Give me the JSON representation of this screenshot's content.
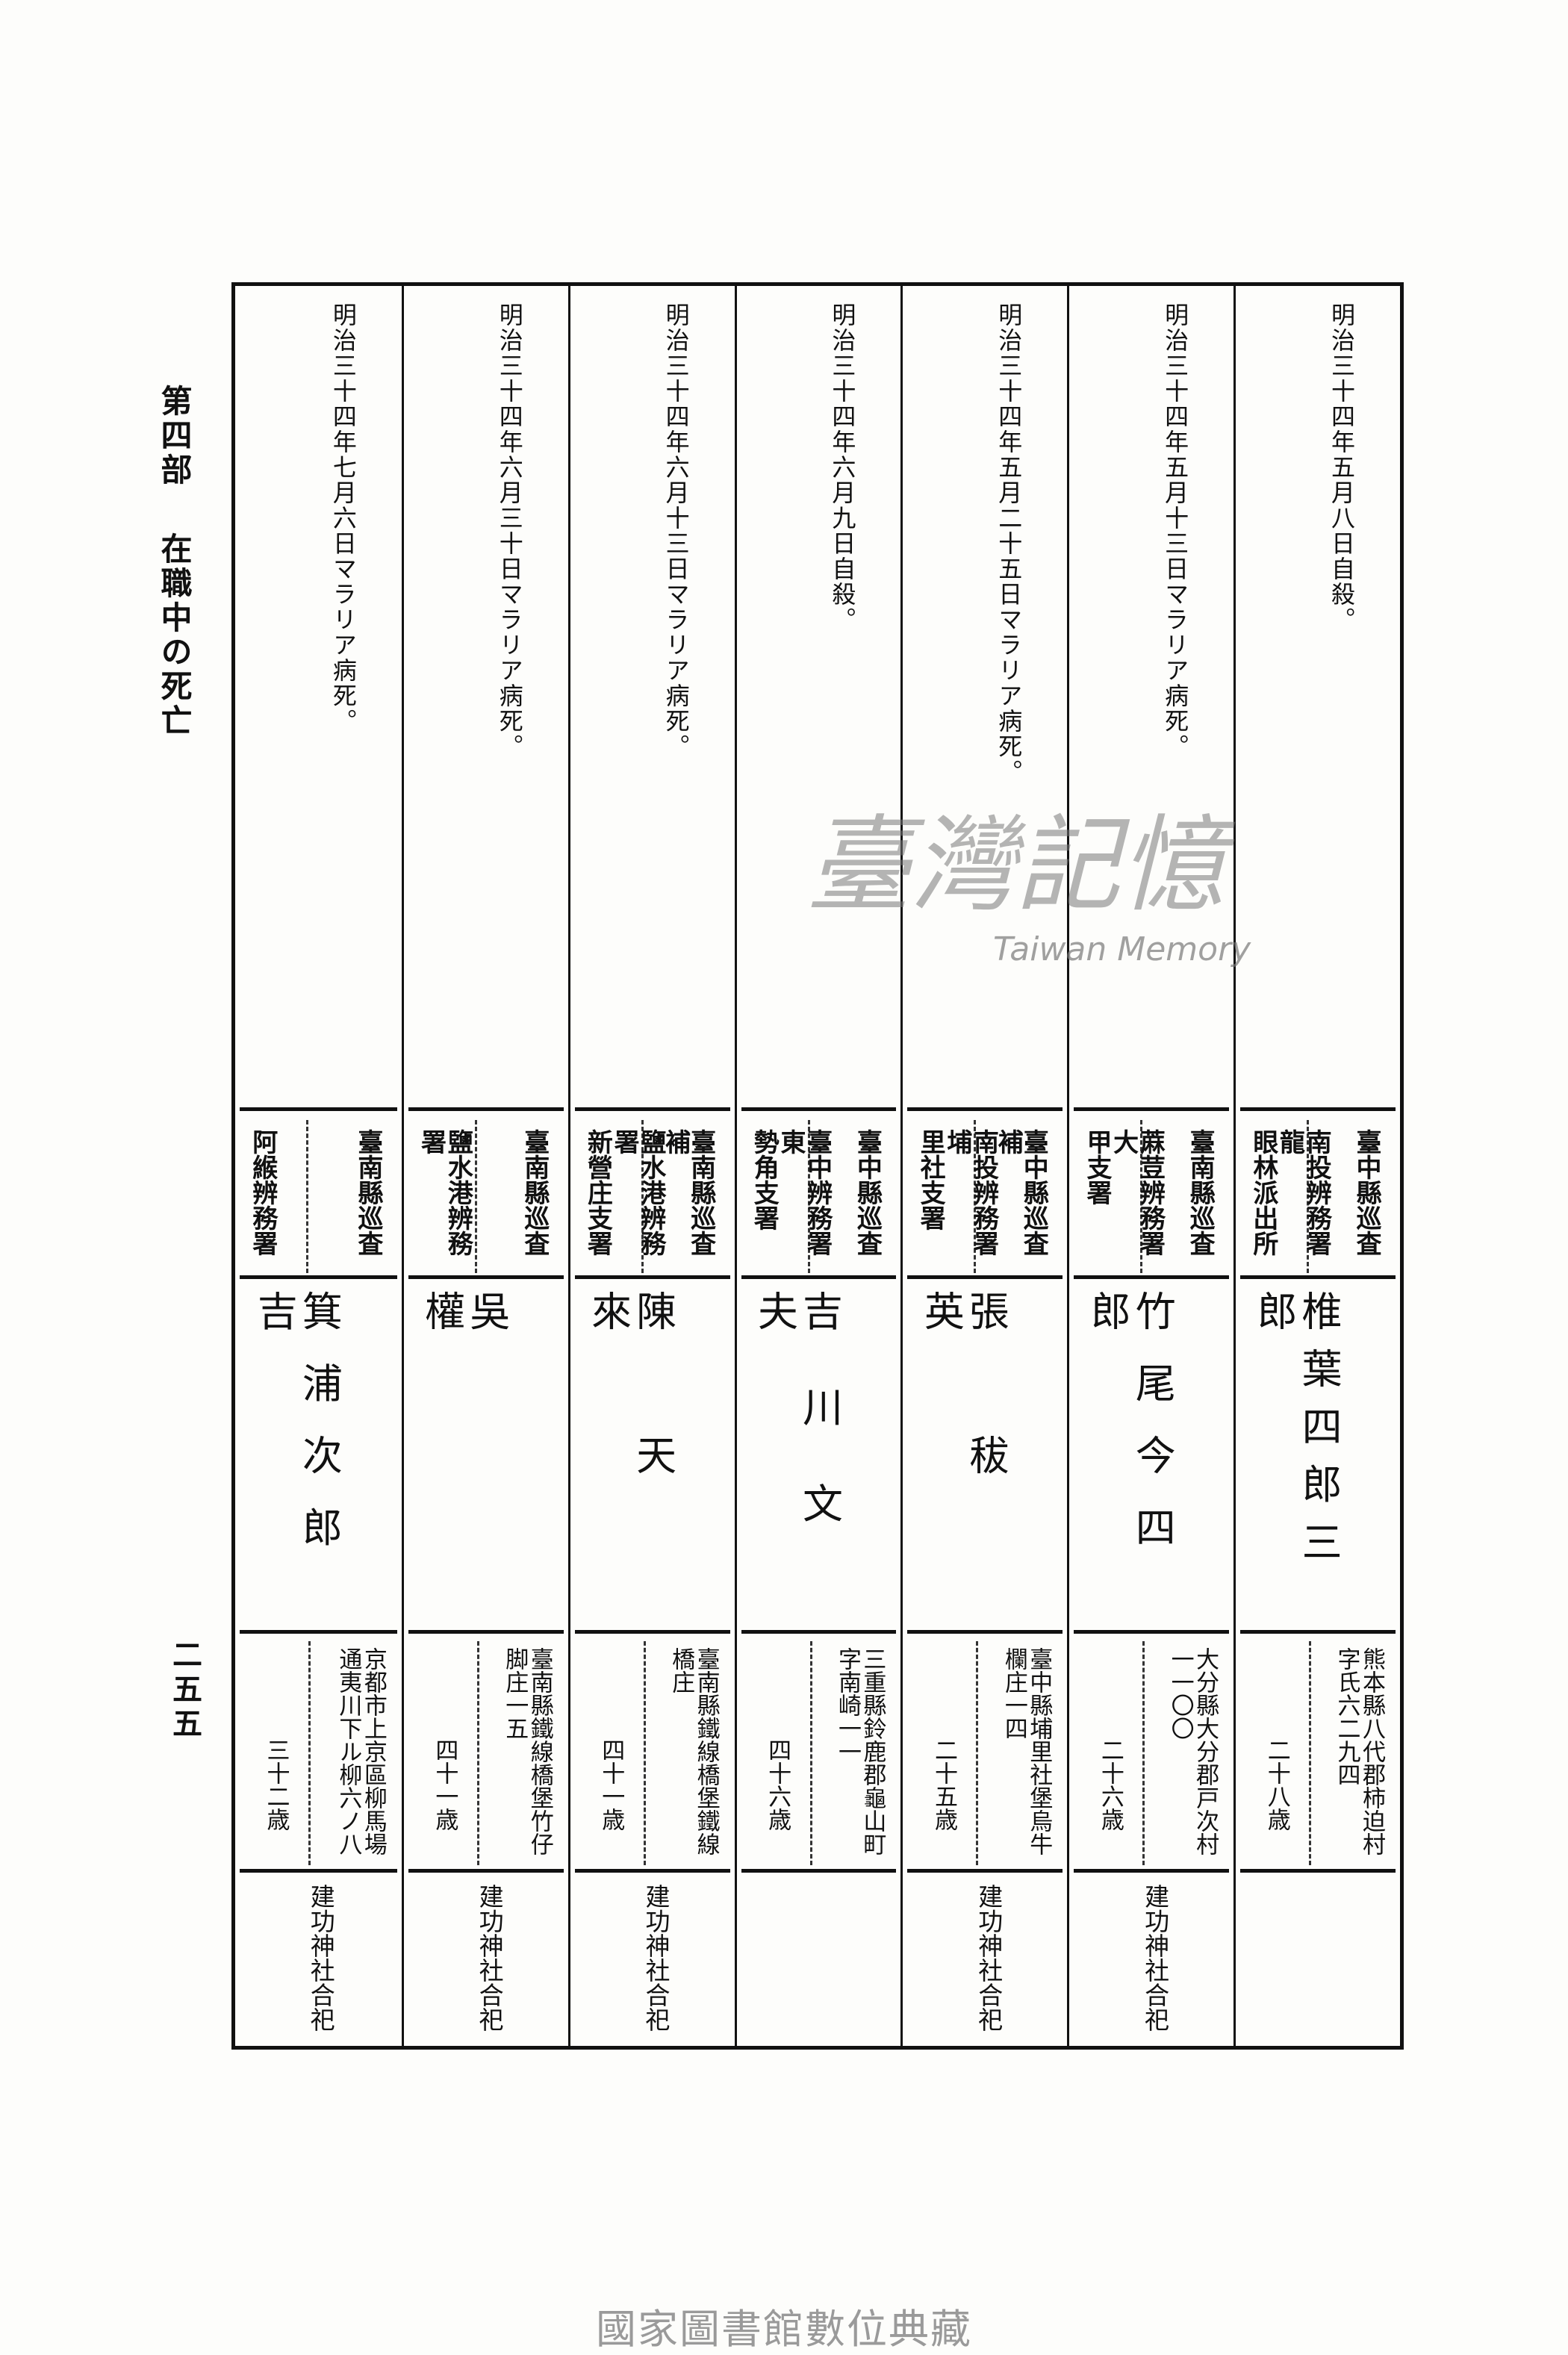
{
  "header": {
    "part": "第四部",
    "chapter": "在職中の死亡"
  },
  "page_number": "二五五",
  "records": [
    {
      "date": "明治三十四年五月八日自殺。",
      "rank": "臺中縣巡査",
      "office_lines": [
        "南投辨務署龍",
        "眼林派出所"
      ],
      "name": "椎葉四郎三郎",
      "address_lines": [
        "熊本縣八代郡柿迫村",
        "字氏六二九四"
      ],
      "age": "二十八歳",
      "note": ""
    },
    {
      "date": "明治三十四年五月十三日マラリア病死。",
      "rank": "臺南縣巡査",
      "office_lines": [
        "蔴荳辨務署大",
        "甲支署"
      ],
      "name": "竹尾今四郎",
      "address_lines": [
        "大分縣大分郡戸次村",
        "一一〇〇"
      ],
      "age": "二十六歳",
      "note": "建功神社合祀"
    },
    {
      "date": "明治三十四年五月二十五日マラリア病死。",
      "rank": "臺中縣巡査補",
      "office_lines": [
        "南投辨務署埔",
        "里社支署"
      ],
      "name": "張秡英",
      "address_lines": [
        "臺中縣埔里社堡烏牛",
        "欄庄一四"
      ],
      "age": "二十五歳",
      "note": "建功神社合祀"
    },
    {
      "date": "明治三十四年六月九日自殺。",
      "rank": "臺中縣巡査",
      "office_lines": [
        "臺中辨務署東",
        "勢角支署"
      ],
      "name": "吉川文夫",
      "address_lines": [
        "三重縣鈴鹿郡龜山町",
        "字南崎一一"
      ],
      "age": "四十六歳",
      "note": ""
    },
    {
      "date": "明治三十四年六月十三日マラリア病死。",
      "rank": "臺南縣巡査補",
      "office_lines": [
        "鹽水港辨務署",
        "新營庄支署"
      ],
      "name": "陳天來",
      "address_lines": [
        "臺南縣鐵線橋堡鐵線",
        "橋庄"
      ],
      "age": "四十一歳",
      "note": "建功神社合祀"
    },
    {
      "date": "明治三十四年六月三十日マラリア病死。",
      "rank": "臺南縣巡査",
      "office_lines": [
        "鹽水港辨務署"
      ],
      "name": "吳權",
      "address_lines": [
        "臺南縣鐵線橋堡竹仔",
        "脚庄一五"
      ],
      "age": "四十一歳",
      "note": "建功神社合祀"
    },
    {
      "date": "明治三十四年七月六日マラリア病死。",
      "rank": "臺南縣巡査",
      "office_lines": [
        "阿緱辨務署"
      ],
      "name": "箕浦次郎吉",
      "address_lines": [
        "京都市上京區柳馬場",
        "通夷川下ル柳六ノ八"
      ],
      "age": "三十二歳",
      "note": "建功神社合祀"
    }
  ],
  "watermark": {
    "text": "臺灣記憶",
    "subtext": "Taiwan Memory"
  },
  "footer": "國家圖書館數位典藏"
}
